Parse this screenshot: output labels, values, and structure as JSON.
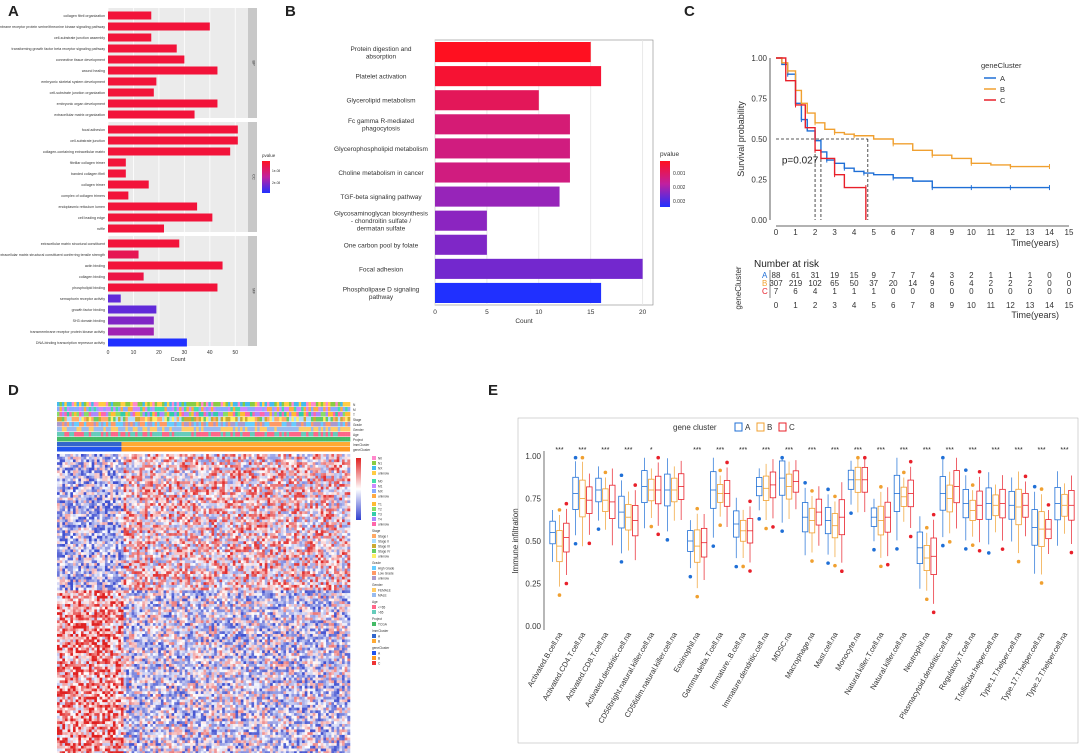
{
  "panels": {
    "A": {
      "letter": "A",
      "xlabel": "Count",
      "legend_title": "pvalue",
      "legend_ticks": [
        "1e-08",
        "2e-08"
      ],
      "facets": [
        "BP",
        "CC",
        "MF"
      ]
    },
    "B": {
      "letter": "B",
      "xlabel": "Count",
      "legend_title": "pvalue",
      "legend_ticks": [
        "0.001",
        "0.002",
        "0.003"
      ]
    },
    "C": {
      "letter": "C",
      "ylabel": "Survival probability",
      "xlabel": "Time(years)",
      "legend_title": "geneCluster",
      "pvalue_text": "p=0.027",
      "risk_title": "Number at risk",
      "risk_ylabel": "geneCluster"
    },
    "D": {
      "letter": "D",
      "track_labels": [
        "N",
        "M",
        "T",
        "Stage",
        "Grade",
        "Gender",
        "Age",
        "Project",
        "ImmCluster",
        "geneCluster"
      ],
      "legend_groups": [
        {
          "title": "",
          "items": [
            "N0",
            "N1",
            "NX",
            "unknow"
          ]
        },
        {
          "title": "",
          "items": [
            "M0",
            "M1",
            "MX",
            "unknow"
          ]
        },
        {
          "title": "",
          "items": [
            "T1",
            "T2",
            "T3",
            "T4",
            "unknow"
          ]
        },
        {
          "title": "Stage",
          "items": [
            "Stage I",
            "Stage II",
            "Stage III",
            "Stage IV",
            "unknow"
          ]
        },
        {
          "title": "Grade",
          "items": [
            "High Grade",
            "Low Grade",
            "unknow"
          ]
        },
        {
          "title": "Gender",
          "items": [
            "FEMALE",
            "MALE"
          ]
        },
        {
          "title": "Age",
          "items": [
            "<=65",
            ">65"
          ]
        },
        {
          "title": "Project",
          "items": [
            "TCGA"
          ]
        },
        {
          "title": "ImmCluster",
          "items": [
            "A",
            "B"
          ]
        },
        {
          "title": "geneCluster",
          "items": [
            "A",
            "B",
            "C"
          ]
        }
      ]
    },
    "E": {
      "letter": "E",
      "ylabel": "Immune infiltration",
      "legend_title": "gene cluster"
    }
  },
  "colors": {
    "A": "#1f6fd6",
    "B": "#f0a030",
    "C": "#e8202a"
  },
  "chart_data": [
    {
      "id": "A",
      "type": "bar",
      "title": "",
      "xlabel": "Count",
      "ylabel": "",
      "xlim": [
        0,
        55
      ],
      "xticks": [
        0,
        10,
        20,
        30,
        40,
        50
      ],
      "categories": [
        "collagen fibril organization",
        "transmembrane receptor protein serine/threonine kinase signaling pathway",
        "cell-substrate junction assembly",
        "transforming growth factor beta receptor signaling pathway",
        "connective tissue development",
        "wound healing",
        "embryonic skeletal system development",
        "cell-substrate junction organization",
        "embryonic organ development",
        "extracellular matrix organization",
        "focal adhesion",
        "cell-substrate junction",
        "collagen-containing extracellular matrix",
        "fibrillar collagen trimer",
        "banded collagen fibril",
        "collagen trimer",
        "complex of collagen trimers",
        "endoplasmic reticulum lumen",
        "cell leading edge",
        "ruffle",
        "extracellular matrix structural constituent",
        "extracellular matrix structural constituent conferring tensile strength",
        "actin binding",
        "collagen binding",
        "phospholipid binding",
        "semaphorin receptor activity",
        "growth factor binding",
        "SH3 domain binding",
        "transmembrane receptor protein kinase activity",
        "DNA-binding transcription repressor activity"
      ],
      "facet": [
        "BP",
        "BP",
        "BP",
        "BP",
        "BP",
        "BP",
        "BP",
        "BP",
        "BP",
        "BP",
        "CC",
        "CC",
        "CC",
        "CC",
        "CC",
        "CC",
        "CC",
        "CC",
        "CC",
        "CC",
        "MF",
        "MF",
        "MF",
        "MF",
        "MF",
        "MF",
        "MF",
        "MF",
        "MF",
        "MF"
      ],
      "values": [
        17,
        40,
        17,
        27,
        30,
        43,
        19,
        18,
        43,
        34,
        51,
        51,
        48,
        7,
        7,
        16,
        8,
        35,
        41,
        22,
        28,
        12,
        45,
        14,
        43,
        5,
        19,
        18,
        18,
        31
      ],
      "pvalue_level": [
        0.1,
        0.1,
        0.1,
        0.1,
        0.1,
        0.1,
        0.1,
        0.1,
        0.1,
        0.1,
        0.1,
        0.1,
        0.1,
        0.1,
        0.1,
        0.1,
        0.1,
        0.1,
        0.1,
        0.1,
        0.1,
        0.2,
        0.1,
        0.15,
        0.1,
        0.8,
        0.8,
        0.7,
        0.6,
        1.0
      ]
    },
    {
      "id": "B",
      "type": "bar",
      "title": "",
      "xlabel": "Count",
      "ylabel": "",
      "xlim": [
        0,
        21
      ],
      "xticks": [
        0,
        5,
        10,
        15,
        20
      ],
      "categories": [
        "Protein digestion and absorption",
        "Platelet activation",
        "Glycerolipid metabolism",
        "Fc gamma R-mediated phagocytosis",
        "Glycerophospholipid metabolism",
        "Choline metabolism in cancer",
        "TGF-beta signaling pathway",
        "Glycosaminoglycan biosynthesis - chondroitin sulfate / dermatan sulfate",
        "One carbon pool by folate",
        "Focal adhesion",
        "Phospholipase D signaling pathway"
      ],
      "values": [
        15,
        16,
        10,
        13,
        13,
        13,
        12,
        5,
        5,
        20,
        16
      ],
      "pvalue": [
        0.0004,
        0.0006,
        0.001,
        0.0013,
        0.0014,
        0.0014,
        0.0021,
        0.0022,
        0.0023,
        0.0024,
        0.0031
      ]
    },
    {
      "id": "C",
      "type": "line",
      "title": "",
      "xlabel": "Time(years)",
      "ylabel": "Survival probability",
      "xlim": [
        0,
        15
      ],
      "ylim": [
        0,
        1
      ],
      "xticks": [
        0,
        1,
        2,
        3,
        4,
        5,
        6,
        7,
        8,
        9,
        10,
        11,
        12,
        13,
        14,
        15
      ],
      "yticks": [
        "0.00",
        "0.25",
        "0.50",
        "0.75",
        "1.00"
      ],
      "series": [
        {
          "name": "A",
          "x": [
            0,
            0.3,
            0.6,
            1,
            1.3,
            1.6,
            2,
            2.3,
            2.6,
            3,
            3.5,
            4,
            4.5,
            5,
            6,
            7,
            8,
            9,
            10,
            11,
            12,
            13,
            14
          ],
          "y": [
            1,
            0.96,
            0.9,
            0.72,
            0.62,
            0.55,
            0.49,
            0.42,
            0.37,
            0.35,
            0.32,
            0.3,
            0.29,
            0.28,
            0.26,
            0.24,
            0.2,
            0.2,
            0.2,
            0.2,
            0.2,
            0.2,
            0.2
          ]
        },
        {
          "name": "B",
          "x": [
            0,
            0.3,
            0.6,
            1,
            1.3,
            1.6,
            2,
            2.5,
            3,
            3.5,
            4,
            5,
            6,
            7,
            8,
            9,
            10,
            11,
            12,
            13,
            14
          ],
          "y": [
            1,
            0.97,
            0.92,
            0.8,
            0.72,
            0.66,
            0.6,
            0.56,
            0.54,
            0.53,
            0.52,
            0.5,
            0.47,
            0.43,
            0.4,
            0.38,
            0.35,
            0.34,
            0.33,
            0.33,
            0.33
          ]
        },
        {
          "name": "C",
          "x": [
            0,
            0.5,
            1,
            1.5,
            2,
            2.3,
            3,
            3.5,
            4.6,
            4.6
          ],
          "y": [
            1,
            0.86,
            0.71,
            0.57,
            0.43,
            0.38,
            0.28,
            0.2,
            0.2,
            0
          ]
        }
      ],
      "median_lines": [
        2.0,
        2.3,
        4.7
      ],
      "pvalue": "p=0.027",
      "risk_table": {
        "times": [
          0,
          1,
          2,
          3,
          4,
          5,
          6,
          7,
          8,
          9,
          10,
          11,
          12,
          13,
          14,
          15
        ],
        "A": [
          "88",
          "61",
          "31",
          "19",
          "15",
          "9",
          "7",
          "7",
          "4",
          "3",
          "2",
          "1",
          "1",
          "1",
          "0",
          "0"
        ],
        "B": [
          "307",
          "219",
          "102",
          "65",
          "50",
          "37",
          "20",
          "14",
          "9",
          "6",
          "4",
          "2",
          "2",
          "2",
          "0",
          "0"
        ],
        "C": [
          "7",
          "6",
          "4",
          "1",
          "1",
          "1",
          "0",
          "0",
          "0",
          "0",
          "0",
          "0",
          "0",
          "0",
          "0",
          "0"
        ]
      }
    },
    {
      "id": "E",
      "type": "bar",
      "subtype": "boxplot",
      "title": "",
      "xlabel": "",
      "ylabel": "Immune infiltration",
      "ylim": [
        0,
        1
      ],
      "yticks": [
        "0.00",
        "0.25",
        "0.50",
        "0.75",
        "1.00"
      ],
      "categories": [
        "Activated.B.cell.na",
        "Activated.CD4.T.cell.na",
        "Activated.CD8.T.cell.na",
        "Activated.dendritic.cell.na",
        "CD56bright.natural.killer.cell.na",
        "CD56dim.natural.killer.cell.na",
        "Eosinophil.na",
        "Gamma.delta.T.cell.na",
        "Immature..B.cell.na",
        "Immature.dendritic.cell.na",
        "MDSC.na",
        "Macrophage.na",
        "Mast.cell.na",
        "Monocyte.na",
        "Natural.killer.T.cell.na",
        "Natural.killer.cell.na",
        "Neutrophil.na",
        "Plasmacytoid.dendritic.cell.na",
        "Regulatory.T.cell.na",
        "T.follicular.helper.cell.na",
        "Type.1.T.helper.cell.na",
        "Type.17.T.helper.cell.na",
        "Type.2.T.helper.cell.na"
      ],
      "significance": [
        "***",
        "***",
        "***",
        "***",
        "*",
        "",
        "***",
        "***",
        "***",
        "***",
        "***",
        "***",
        "***",
        "***",
        "***",
        "***",
        "***",
        "***",
        "***",
        "***",
        "***",
        "***",
        "***"
      ],
      "series": [
        {
          "name": "A",
          "median": [
            0.55,
            0.78,
            0.8,
            0.67,
            0.82,
            0.8,
            0.5,
            0.8,
            0.6,
            0.82,
            0.87,
            0.64,
            0.62,
            0.86,
            0.64,
            0.78,
            0.46,
            0.78,
            0.72,
            0.72,
            0.71,
            0.58,
            0.72
          ]
        },
        {
          "name": "B",
          "median": [
            0.47,
            0.75,
            0.74,
            0.64,
            0.8,
            0.8,
            0.47,
            0.78,
            0.56,
            0.81,
            0.82,
            0.62,
            0.59,
            0.86,
            0.62,
            0.76,
            0.4,
            0.75,
            0.68,
            0.71,
            0.7,
            0.57,
            0.71
          ]
        },
        {
          "name": "C",
          "median": [
            0.52,
            0.74,
            0.73,
            0.62,
            0.8,
            0.82,
            0.49,
            0.78,
            0.56,
            0.83,
            0.85,
            0.67,
            0.64,
            0.86,
            0.64,
            0.78,
            0.41,
            0.82,
            0.71,
            0.72,
            0.71,
            0.57,
            0.71
          ]
        }
      ]
    }
  ]
}
